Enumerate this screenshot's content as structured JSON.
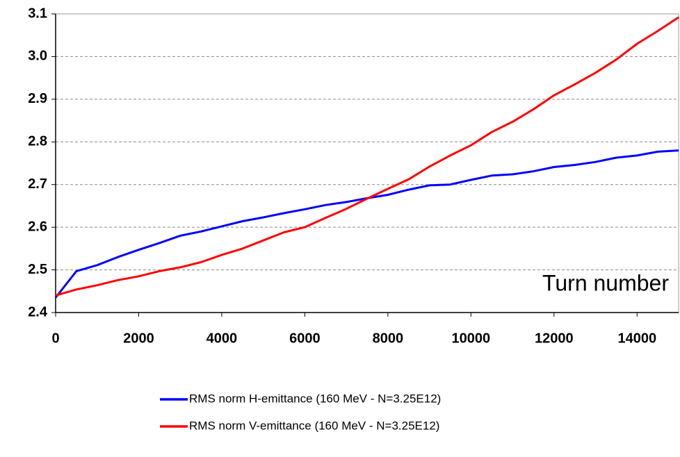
{
  "chart_data": {
    "type": "line",
    "annotation": "Turn number",
    "x": [
      0,
      500,
      1000,
      1500,
      2000,
      2500,
      3000,
      3500,
      4000,
      4500,
      5000,
      5500,
      6000,
      6500,
      7000,
      7500,
      8000,
      8500,
      9000,
      9500,
      10000,
      10500,
      11000,
      11500,
      12000,
      12500,
      13000,
      13500,
      14000,
      14500,
      15000
    ],
    "series": [
      {
        "name": "RMS norm H-emittance (160 MeV - N=3.25E12)",
        "color": "#0000ff",
        "values": [
          2.435,
          2.497,
          2.511,
          2.53,
          2.547,
          2.563,
          2.58,
          2.59,
          2.602,
          2.614,
          2.623,
          2.633,
          2.642,
          2.652,
          2.659,
          2.668,
          2.676,
          2.688,
          2.698,
          2.7,
          2.711,
          2.721,
          2.724,
          2.731,
          2.741,
          2.746,
          2.753,
          2.763,
          2.768,
          2.777,
          2.78
        ]
      },
      {
        "name": "RMS norm V-emittance (160 MeV - N=3.25E12)",
        "color": "#ff0000",
        "values": [
          2.44,
          2.454,
          2.464,
          2.476,
          2.485,
          2.497,
          2.506,
          2.518,
          2.535,
          2.55,
          2.569,
          2.588,
          2.6,
          2.622,
          2.643,
          2.667,
          2.69,
          2.712,
          2.742,
          2.768,
          2.792,
          2.823,
          2.847,
          2.876,
          2.909,
          2.935,
          2.962,
          2.993,
          3.03,
          3.06,
          3.092
        ]
      }
    ],
    "xlim": [
      0,
      15000
    ],
    "xticks": [
      0,
      2000,
      4000,
      6000,
      8000,
      10000,
      12000,
      14000
    ],
    "ylim": [
      2.4,
      3.1
    ],
    "yticks": [
      2.4,
      2.5,
      2.6,
      2.7,
      2.8,
      2.9,
      {
        "value": 3,
        "label": "3.0"
      },
      3.1
    ],
    "grid": true
  }
}
